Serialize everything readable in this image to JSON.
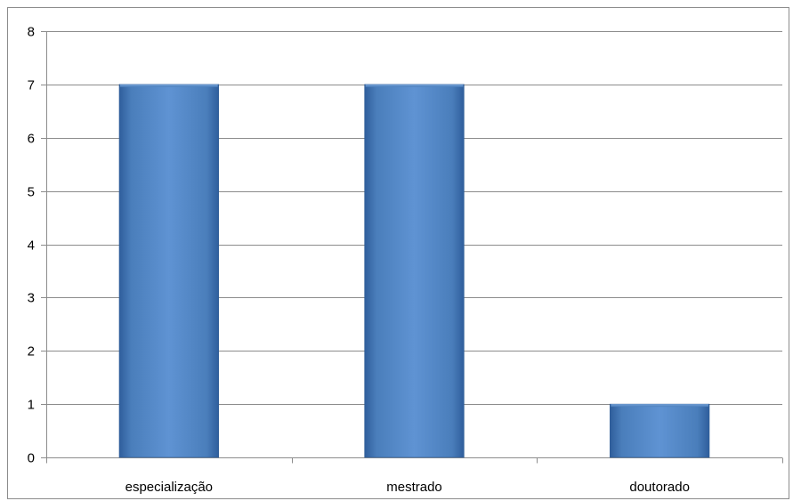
{
  "chart_data": {
    "type": "bar",
    "title": "",
    "xlabel": "",
    "ylabel": "",
    "categories": [
      "especialização",
      "mestrado",
      "doutorado"
    ],
    "values": [
      7,
      7,
      1
    ],
    "ylim": [
      0,
      8
    ],
    "yticks": [
      0,
      1,
      2,
      3,
      4,
      5,
      6,
      7,
      8
    ],
    "grid": true,
    "legend": "none",
    "colors": {
      "bar": "#4a7ebb",
      "bar_light": "#5f93d3",
      "bar_dark": "#2f5e9c",
      "gridline": "#8c8c8c",
      "axis": "#8c8c8c"
    }
  }
}
